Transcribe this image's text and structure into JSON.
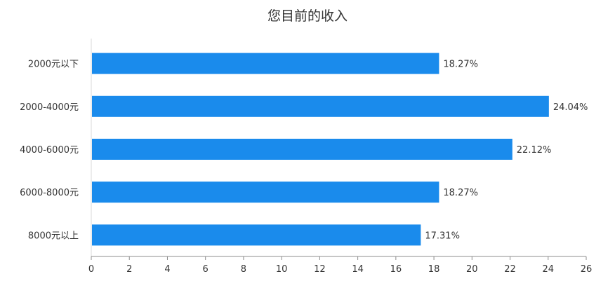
{
  "chart_data": {
    "type": "bar",
    "orientation": "horizontal",
    "title": "您目前的收入",
    "categories": [
      "2000元以下",
      "2000-4000元",
      "4000-6000元",
      "6000-8000元",
      "8000元以上"
    ],
    "values": [
      18.27,
      24.04,
      22.12,
      18.27,
      17.31
    ],
    "value_labels": [
      "18.27%",
      "24.04%",
      "22.12%",
      "18.27%",
      "17.31%"
    ],
    "xlim": [
      0,
      26
    ],
    "xticks": [
      0,
      2,
      4,
      6,
      8,
      10,
      12,
      14,
      16,
      18,
      20,
      22,
      24,
      26
    ],
    "xlabel": "",
    "ylabel": "",
    "grid": false,
    "legend": "none",
    "bar_color": "#1a8bec"
  }
}
